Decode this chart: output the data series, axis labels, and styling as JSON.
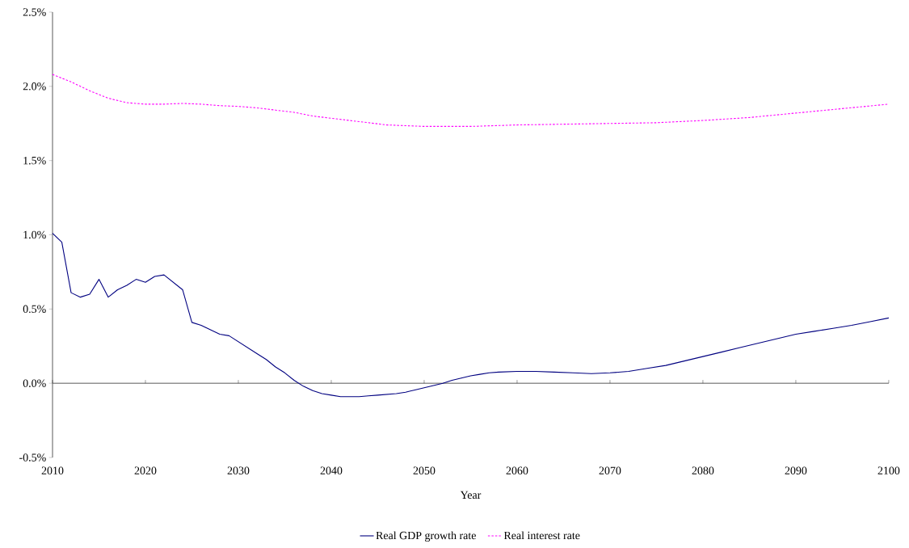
{
  "chart_data": {
    "type": "line",
    "xlabel": "Year",
    "xlim": [
      2010,
      2100
    ],
    "xticks": [
      2010,
      2020,
      2030,
      2040,
      2050,
      2060,
      2070,
      2080,
      2090,
      2100
    ],
    "ylim": [
      -0.5,
      2.5
    ],
    "yticks": [
      {
        "value": -0.5,
        "label": "-0.5%"
      },
      {
        "value": 0,
        "label": "0.0%"
      },
      {
        "value": 0.5,
        "label": "0.5%"
      },
      {
        "value": 1,
        "label": "1.0%"
      },
      {
        "value": 1.5,
        "label": "1.5%"
      },
      {
        "value": 2,
        "label": "2.0%"
      },
      {
        "value": 2.5,
        "label": "2.5%"
      }
    ],
    "legend": "bottom",
    "series": [
      {
        "name": "Real GDP growth rate",
        "color": "#000080",
        "line_style": "solid",
        "x": [
          2010,
          2011,
          2012,
          2013,
          2014,
          2015,
          2016,
          2017,
          2018,
          2019,
          2020,
          2021,
          2022,
          2023,
          2024,
          2025,
          2026,
          2027,
          2028,
          2029,
          2030,
          2031,
          2032,
          2033,
          2034,
          2035,
          2036,
          2037,
          2038,
          2039,
          2040,
          2041,
          2042,
          2043,
          2044,
          2045,
          2046,
          2047,
          2048,
          2049,
          2050,
          2051,
          2052,
          2053,
          2054,
          2055,
          2056,
          2057,
          2058,
          2060,
          2062,
          2064,
          2066,
          2068,
          2070,
          2072,
          2074,
          2076,
          2078,
          2080,
          2082,
          2084,
          2086,
          2088,
          2090,
          2092,
          2094,
          2096,
          2098,
          2100
        ],
        "values": [
          1.01,
          0.95,
          0.61,
          0.58,
          0.6,
          0.7,
          0.58,
          0.63,
          0.66,
          0.7,
          0.68,
          0.72,
          0.73,
          0.68,
          0.63,
          0.41,
          0.39,
          0.36,
          0.33,
          0.32,
          0.28,
          0.24,
          0.2,
          0.16,
          0.11,
          0.07,
          0.02,
          -0.02,
          -0.05,
          -0.07,
          -0.08,
          -0.09,
          -0.09,
          -0.09,
          -0.085,
          -0.08,
          -0.075,
          -0.07,
          -0.06,
          -0.045,
          -0.03,
          -0.015,
          0.0,
          0.02,
          0.035,
          0.05,
          0.06,
          0.07,
          0.075,
          0.08,
          0.08,
          0.075,
          0.07,
          0.065,
          0.07,
          0.08,
          0.1,
          0.12,
          0.15,
          0.18,
          0.21,
          0.24,
          0.27,
          0.3,
          0.33,
          0.35,
          0.37,
          0.39,
          0.415,
          0.44
        ]
      },
      {
        "name": "Real interest rate",
        "color": "#ff00ff",
        "line_style": "dashed",
        "x": [
          2010,
          2012,
          2014,
          2016,
          2018,
          2020,
          2022,
          2024,
          2026,
          2028,
          2030,
          2032,
          2034,
          2036,
          2038,
          2040,
          2042,
          2044,
          2046,
          2048,
          2050,
          2055,
          2060,
          2065,
          2070,
          2075,
          2080,
          2085,
          2090,
          2095,
          2100
        ],
        "values": [
          2.08,
          2.03,
          1.97,
          1.92,
          1.89,
          1.88,
          1.88,
          1.885,
          1.88,
          1.87,
          1.865,
          1.855,
          1.84,
          1.825,
          1.8,
          1.785,
          1.77,
          1.755,
          1.74,
          1.735,
          1.73,
          1.73,
          1.74,
          1.745,
          1.75,
          1.755,
          1.77,
          1.79,
          1.82,
          1.85,
          1.88
        ]
      }
    ]
  }
}
